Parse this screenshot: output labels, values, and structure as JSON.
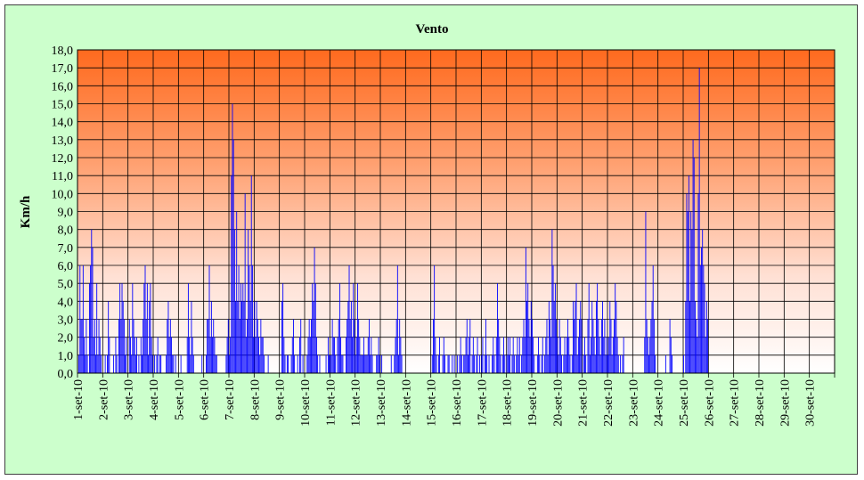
{
  "chart_data": {
    "type": "bar",
    "title": "Vento",
    "xlabel": "",
    "ylabel": "Km/h",
    "ylim": [
      0,
      18
    ],
    "y_ticks": [
      "0,0",
      "1,0",
      "2,0",
      "3,0",
      "4,0",
      "5,0",
      "6,0",
      "7,0",
      "8,0",
      "9,0",
      "10,0",
      "11,0",
      "12,0",
      "13,0",
      "14,0",
      "15,0",
      "16,0",
      "17,0",
      "18,0"
    ],
    "x_ticks": [
      "1-set-10",
      "2-set-10",
      "3-set-10",
      "4-set-10",
      "5-set-10",
      "6-set-10",
      "7-set-10",
      "8-set-10",
      "9-set-10",
      "10-set-10",
      "11-set-10",
      "12-set-10",
      "13-set-10",
      "14-set-10",
      "15-set-10",
      "16-set-10",
      "17-set-10",
      "18-set-10",
      "19-set-10",
      "20-set-10",
      "21-set-10",
      "22-set-10",
      "23-set-10",
      "24-set-10",
      "25-set-10",
      "26-set-10",
      "27-set-10",
      "28-set-10",
      "29-set-10",
      "30-set-10"
    ],
    "grid": true,
    "colors": {
      "bars": "#0000ff",
      "plot_top": "#ff6a1e",
      "plot_bottom": "#ffffff",
      "frame": "#ccffcc"
    },
    "days_with_data": 25,
    "daily_profiles": [
      [
        0,
        1,
        6,
        3,
        3,
        6,
        2,
        1,
        3,
        1,
        0,
        5,
        6,
        8,
        7,
        2,
        3,
        1,
        5,
        1,
        3,
        2,
        1,
        0
      ],
      [
        0,
        0,
        1,
        0,
        1,
        4,
        2,
        0,
        0,
        0,
        1,
        0,
        2,
        1,
        0,
        3,
        5,
        3,
        5,
        4,
        3,
        1,
        2,
        0
      ],
      [
        0,
        3,
        2,
        1,
        5,
        3,
        2,
        1,
        2,
        0,
        1,
        0,
        2,
        1,
        3,
        5,
        6,
        3,
        5,
        1,
        4,
        5,
        2,
        1
      ],
      [
        0,
        1,
        0,
        1,
        2,
        0,
        1,
        1,
        0,
        0,
        0,
        0,
        1,
        3,
        4,
        2,
        3,
        2,
        1,
        1,
        0,
        1,
        0,
        0
      ],
      [
        0,
        0,
        1,
        0,
        0,
        0,
        0,
        0,
        2,
        5,
        2,
        1,
        4,
        2,
        1,
        0,
        0,
        0,
        0,
        0,
        0,
        0,
        1,
        0
      ],
      [
        0,
        0,
        1,
        3,
        3,
        6,
        2,
        4,
        2,
        3,
        2,
        1,
        1,
        0,
        0,
        0,
        0,
        0,
        0,
        0,
        0,
        1,
        2,
        3
      ],
      [
        1,
        2,
        11,
        15,
        13,
        8,
        4,
        9,
        4,
        6,
        3,
        5,
        4,
        5,
        4,
        10,
        2,
        3,
        8,
        6,
        4,
        11,
        6,
        2
      ],
      [
        4,
        2,
        4,
        3,
        2,
        1,
        3,
        2,
        2,
        1,
        0,
        0,
        0,
        1,
        0,
        0,
        0,
        0,
        0,
        0,
        0,
        0,
        0,
        0
      ],
      [
        0,
        0,
        4,
        5,
        2,
        1,
        0,
        1,
        1,
        0,
        0,
        1,
        2,
        3,
        1,
        0,
        0,
        1,
        0,
        2,
        3,
        0,
        1,
        0
      ],
      [
        0,
        0,
        1,
        2,
        3,
        2,
        3,
        5,
        4,
        7,
        5,
        2,
        1,
        0,
        1,
        0,
        0,
        0,
        0,
        0,
        1,
        0,
        2,
        1
      ],
      [
        1,
        1,
        3,
        2,
        2,
        1,
        0,
        2,
        3,
        5,
        2,
        1,
        1,
        0,
        0,
        2,
        3,
        4,
        6,
        3,
        4,
        2,
        5,
        3
      ],
      [
        1,
        2,
        5,
        3,
        2,
        1,
        1,
        1,
        2,
        1,
        1,
        1,
        2,
        3,
        1,
        2,
        1,
        0,
        0,
        0,
        1,
        1,
        2,
        1
      ],
      [
        0,
        1,
        0,
        0,
        0,
        0,
        0,
        0,
        0,
        0,
        1,
        0,
        0,
        1,
        2,
        3,
        6,
        1,
        3,
        2,
        1,
        0,
        0,
        0
      ],
      [
        0,
        0,
        0,
        0,
        0,
        0,
        0,
        0,
        0,
        0,
        0,
        0,
        0,
        0,
        0,
        0,
        0,
        0,
        0,
        0,
        0,
        0,
        0,
        0
      ],
      [
        0,
        1,
        3,
        6,
        2,
        1,
        0,
        1,
        2,
        0,
        0,
        1,
        2,
        1,
        0,
        0,
        1,
        1,
        0,
        0,
        1,
        0,
        1,
        0
      ],
      [
        0,
        1,
        0,
        1,
        2,
        1,
        0,
        1,
        1,
        2,
        3,
        1,
        2,
        3,
        0,
        1,
        2,
        1,
        0,
        1,
        2,
        0,
        1,
        0
      ],
      [
        1,
        2,
        0,
        1,
        3,
        1,
        0,
        1,
        0,
        0,
        1,
        2,
        1,
        0,
        2,
        5,
        3,
        2,
        1,
        0,
        1,
        2,
        1,
        0
      ],
      [
        1,
        2,
        1,
        2,
        0,
        1,
        2,
        1,
        0,
        1,
        2,
        1,
        2,
        0,
        1,
        2,
        3,
        2,
        7,
        4,
        5,
        3,
        2,
        4
      ],
      [
        3,
        2,
        1,
        0,
        0,
        1,
        2,
        1,
        0,
        1,
        2,
        0,
        1,
        2,
        3,
        1,
        4,
        3,
        2,
        8,
        6,
        4,
        5,
        3
      ],
      [
        2,
        1,
        3,
        2,
        1,
        0,
        1,
        2,
        1,
        2,
        3,
        2,
        1,
        0,
        1,
        4,
        3,
        4,
        5,
        1,
        2,
        3,
        4,
        3
      ],
      [
        0,
        1,
        2,
        1,
        0,
        3,
        5,
        1,
        2,
        4,
        3,
        2,
        1,
        4,
        5,
        3,
        2,
        1,
        3,
        4,
        2,
        3,
        1,
        2
      ],
      [
        1,
        2,
        4,
        3,
        1,
        2,
        3,
        5,
        4,
        2,
        1,
        0,
        1,
        0,
        1,
        2,
        0,
        0,
        0,
        0,
        0,
        0,
        0,
        0
      ],
      [
        0,
        0,
        0,
        0,
        0,
        0,
        0,
        0,
        0,
        0,
        0,
        2,
        9,
        3,
        2,
        1,
        2,
        3,
        4,
        6,
        3,
        1,
        0,
        0
      ],
      [
        0,
        0,
        0,
        0,
        0,
        0,
        0,
        1,
        0,
        0,
        0,
        3,
        2,
        1,
        0,
        0,
        0,
        0,
        0,
        0,
        0,
        0,
        0,
        0
      ],
      [
        1,
        0,
        4,
        10,
        9,
        11,
        4,
        9,
        8,
        13,
        12,
        4,
        3,
        2,
        10,
        17,
        6,
        7,
        8,
        6,
        5,
        2,
        4,
        3
      ]
    ]
  }
}
